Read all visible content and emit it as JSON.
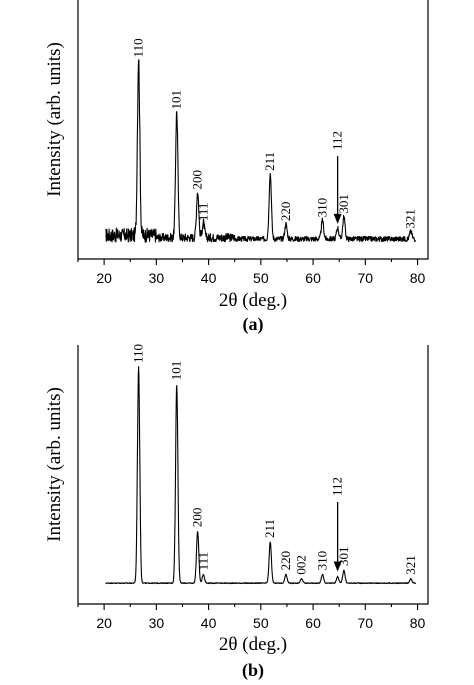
{
  "chart_data": [
    {
      "panel_label": "(a)",
      "type": "line",
      "xlabel": "2θ (deg.)",
      "ylabel": "Intensity (arb. units)",
      "xlim": [
        15,
        82
      ],
      "ylim": [
        0,
        1.0
      ],
      "xticks": [
        "20",
        "30",
        "40",
        "50",
        "60",
        "70",
        "80"
      ],
      "grid": false,
      "background_noise": 0.035,
      "peaks": [
        {
          "label": "110",
          "x": 26.6,
          "y": 0.96
        },
        {
          "label": "101",
          "x": 33.9,
          "y": 0.68
        },
        {
          "label": "200",
          "x": 37.9,
          "y": 0.25
        },
        {
          "label": "111",
          "x": 39.0,
          "y": 0.08
        },
        {
          "label": "211",
          "x": 51.8,
          "y": 0.35
        },
        {
          "label": "220",
          "x": 54.8,
          "y": 0.08
        },
        {
          "label": "310",
          "x": 61.8,
          "y": 0.1
        },
        {
          "label": "112",
          "x": 64.7,
          "y": 0.06
        },
        {
          "label": "301",
          "x": 65.9,
          "y": 0.12
        },
        {
          "label": "321",
          "x": 78.7,
          "y": 0.04
        }
      ]
    },
    {
      "panel_label": "(b)",
      "type": "line",
      "xlabel": "2θ (deg.)",
      "ylabel": "Intensity (arb. units)",
      "xlim": [
        15,
        82
      ],
      "ylim": [
        0,
        1.0
      ],
      "xticks": [
        "20",
        "30",
        "40",
        "50",
        "60",
        "70",
        "80"
      ],
      "grid": false,
      "background_noise": 0.0,
      "peaks": [
        {
          "label": "110",
          "x": 26.6,
          "y": 1.0
        },
        {
          "label": "101",
          "x": 33.9,
          "y": 0.92
        },
        {
          "label": "200",
          "x": 37.9,
          "y": 0.24
        },
        {
          "label": "111",
          "x": 39.0,
          "y": 0.04
        },
        {
          "label": "211",
          "x": 51.8,
          "y": 0.19
        },
        {
          "label": "220",
          "x": 54.8,
          "y": 0.04
        },
        {
          "label": "002",
          "x": 57.8,
          "y": 0.02
        },
        {
          "label": "310",
          "x": 61.8,
          "y": 0.04
        },
        {
          "label": "112",
          "x": 64.7,
          "y": 0.03
        },
        {
          "label": "301",
          "x": 65.9,
          "y": 0.06
        },
        {
          "label": "321",
          "x": 78.7,
          "y": 0.02
        }
      ]
    }
  ]
}
